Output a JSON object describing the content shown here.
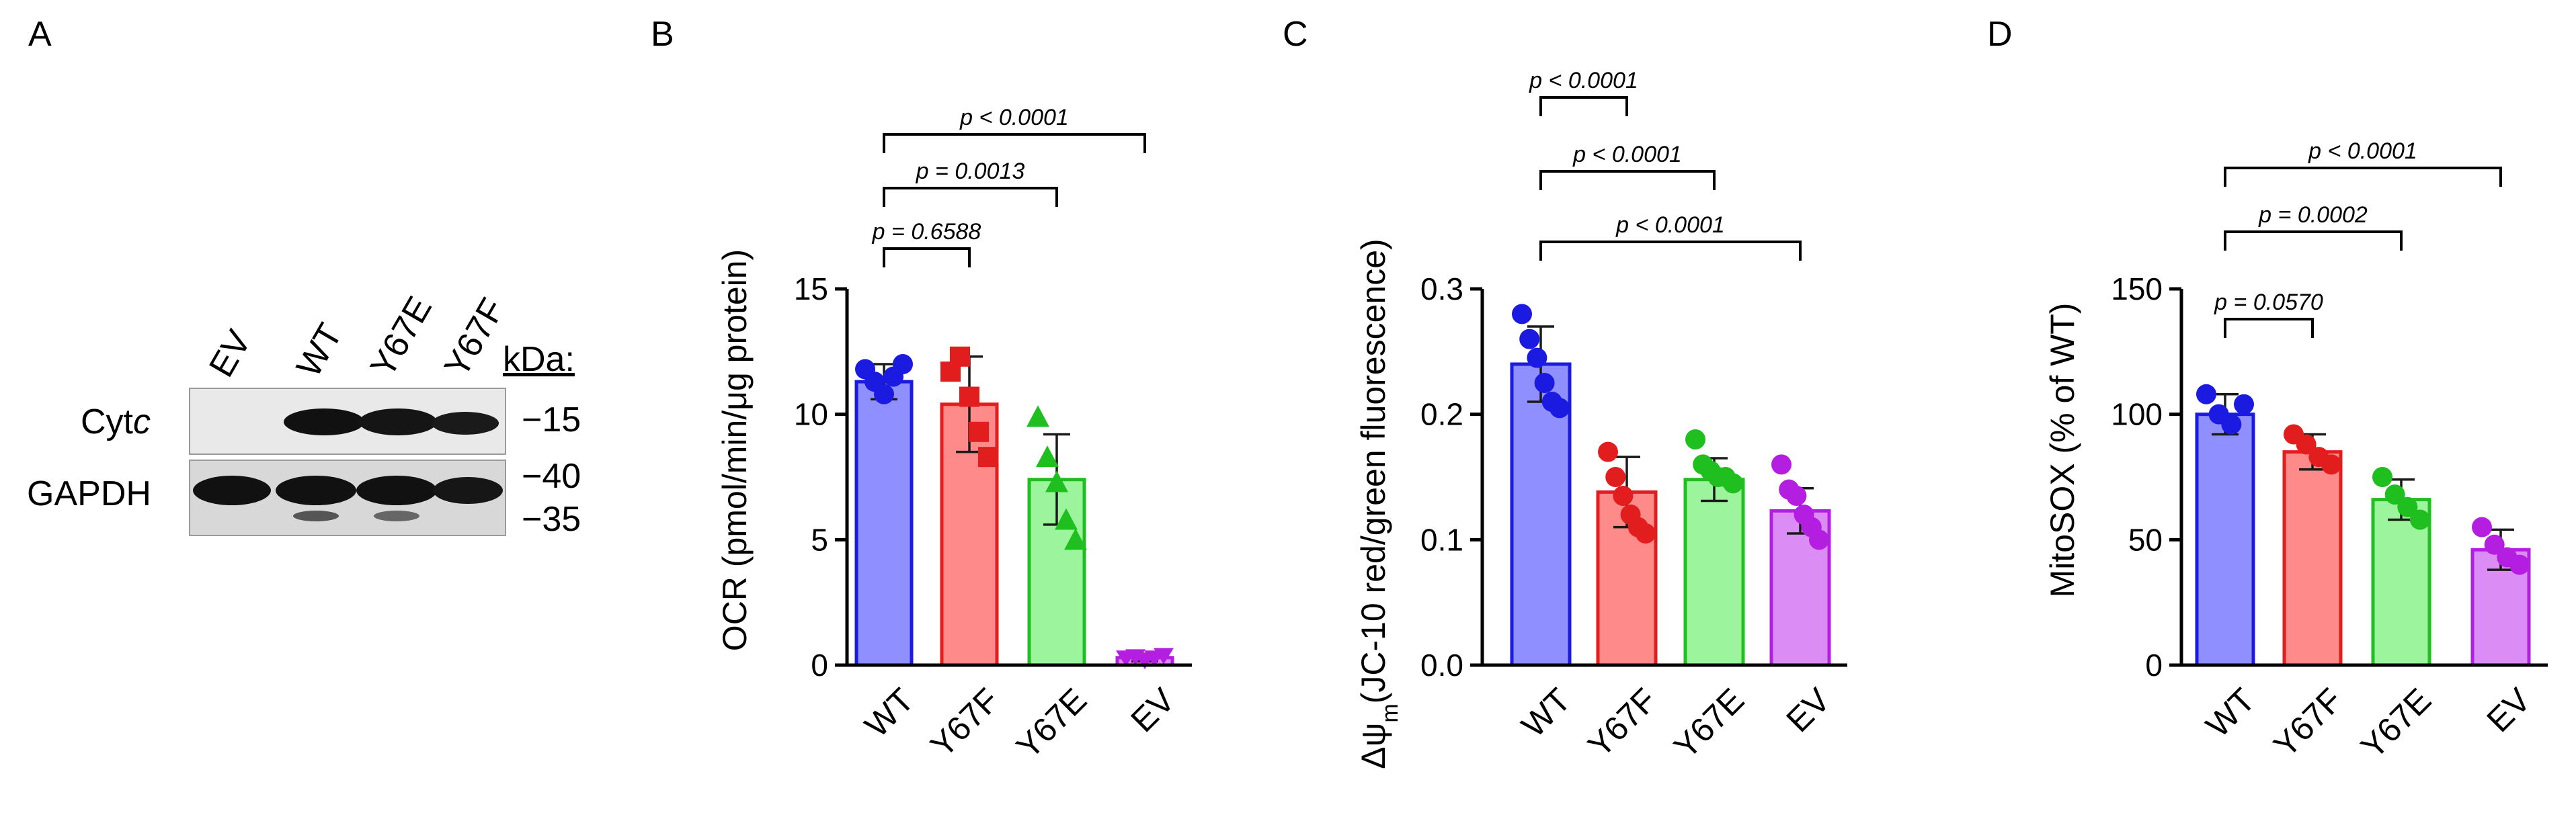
{
  "panel_letters": [
    "A",
    "B",
    "C",
    "D"
  ],
  "blot": {
    "lanes": [
      "EV",
      "WT",
      "Y67E",
      "Y67F"
    ],
    "kda_label": "kDa:",
    "rows": [
      {
        "label_main": "Cyt",
        "label_italic": "c",
        "markers": [
          "15"
        ]
      },
      {
        "label_main": "GAPDH",
        "label_italic": "",
        "markers": [
          "40",
          "35"
        ]
      }
    ]
  },
  "colors": {
    "WT": "#1a1ae0",
    "WT_fill": "#8f8fff",
    "Y67F": "#e11d1d",
    "Y67F_fill": "#ff8a8a",
    "Y67E": "#1fbf1f",
    "Y67E_fill": "#9cf59c",
    "EV": "#b31ee0",
    "EV_fill": "#dc8cf5"
  },
  "chart_data": [
    {
      "panel": "B",
      "type": "bar",
      "categories": [
        "WT",
        "Y67F",
        "Y67E",
        "EV"
      ],
      "values": [
        11.3,
        10.4,
        7.4,
        0.3
      ],
      "errors": [
        0.7,
        1.9,
        1.8,
        0.15
      ],
      "points": [
        [
          11.8,
          11.3,
          10.8,
          11.5,
          12.0
        ],
        [
          11.7,
          12.3,
          10.7,
          9.3,
          8.3
        ],
        [
          9.9,
          8.3,
          7.3,
          5.8,
          5.0
        ],
        [
          0.3,
          0.35,
          0.2,
          0.3,
          0.4
        ]
      ],
      "markers": [
        "circle",
        "square",
        "triangle",
        "triangle-down"
      ],
      "ylim": [
        0,
        15
      ],
      "yticks": [
        0,
        5,
        10,
        15
      ],
      "ylabel": "OCR (pmol/min/μg protein)",
      "comparisons": [
        {
          "from": 0,
          "to": 1,
          "label": "p = 0.6588"
        },
        {
          "from": 0,
          "to": 2,
          "label": "p = 0.0013"
        },
        {
          "from": 0,
          "to": 3,
          "label": "p < 0.0001"
        }
      ]
    },
    {
      "panel": "C",
      "type": "bar",
      "categories": [
        "WT",
        "Y67F",
        "Y67E",
        "EV"
      ],
      "values": [
        0.24,
        0.138,
        0.148,
        0.123
      ],
      "errors": [
        0.03,
        0.028,
        0.017,
        0.018
      ],
      "points": [
        [
          0.28,
          0.26,
          0.245,
          0.225,
          0.21,
          0.205
        ],
        [
          0.17,
          0.15,
          0.135,
          0.12,
          0.11,
          0.105
        ],
        [
          0.18,
          0.16,
          0.155,
          0.15,
          0.15,
          0.145
        ],
        [
          0.16,
          0.14,
          0.135,
          0.12,
          0.11,
          0.1
        ]
      ],
      "markers": [
        "circle",
        "circle",
        "circle",
        "circle"
      ],
      "ylim": [
        0,
        0.3
      ],
      "yticks": [
        0.0,
        0.1,
        0.2,
        0.3
      ],
      "ylabel_prefix": "Δψ",
      "ylabel_sub": "m",
      "ylabel_rest": "(JC-10 red/green fluorescence)",
      "comparisons": [
        {
          "from": 0,
          "to": 1,
          "label": "p < 0.0001"
        },
        {
          "from": 0,
          "to": 2,
          "label": "p < 0.0001"
        },
        {
          "from": 0,
          "to": 3,
          "label": "p < 0.0001"
        }
      ]
    },
    {
      "panel": "D",
      "type": "bar",
      "categories": [
        "WT",
        "Y67F",
        "Y67E",
        "EV"
      ],
      "values": [
        100,
        85,
        66,
        46
      ],
      "errors": [
        8,
        7,
        8,
        8
      ],
      "points": [
        [
          108,
          100,
          96,
          104
        ],
        [
          92,
          88,
          83,
          80
        ],
        [
          75,
          68,
          63,
          58
        ],
        [
          55,
          48,
          43,
          40
        ]
      ],
      "markers": [
        "circle",
        "circle",
        "circle",
        "circle"
      ],
      "ylim": [
        0,
        150
      ],
      "yticks": [
        0,
        50,
        100,
        150
      ],
      "ylabel": "MitoSOX (% of WT)",
      "comparisons": [
        {
          "from": 0,
          "to": 1,
          "label": "p = 0.0570"
        },
        {
          "from": 0,
          "to": 2,
          "label": "p = 0.0002"
        },
        {
          "from": 0,
          "to": 3,
          "label": "p < 0.0001"
        }
      ]
    }
  ]
}
